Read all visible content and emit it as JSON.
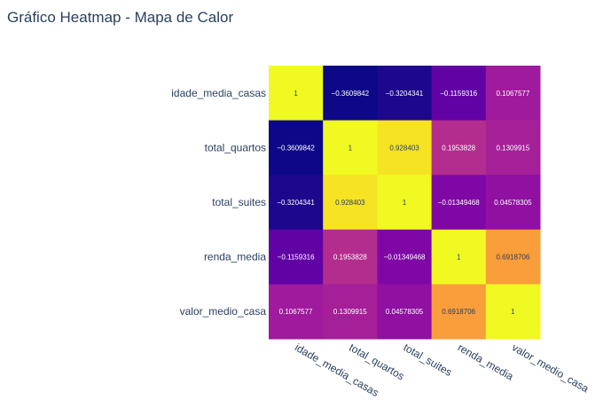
{
  "chart_data": {
    "type": "heatmap",
    "title": "Gráfico Heatmap - Mapa de Calor",
    "xlabel": "",
    "ylabel": "",
    "x_categories": [
      "idade_media_casas",
      "total_quartos",
      "total_suites",
      "renda_media",
      "valor_medio_casa"
    ],
    "y_categories": [
      "idade_media_casas",
      "total_quartos",
      "total_suites",
      "renda_media",
      "valor_medio_casa"
    ],
    "values": [
      [
        1,
        -0.3609842,
        -0.3204341,
        -0.1159316,
        0.1067577
      ],
      [
        -0.3609842,
        1,
        0.928403,
        0.1953828,
        0.1309915
      ],
      [
        -0.3204341,
        0.928403,
        1,
        -0.01349468,
        0.04578305
      ],
      [
        -0.1159316,
        0.1953828,
        -0.01349468,
        1,
        0.6918706
      ],
      [
        0.1067577,
        0.1309915,
        0.04578305,
        0.6918706,
        1
      ]
    ],
    "value_labels": [
      [
        "1",
        "−0.3609842",
        "−0.3204341",
        "−0.1159316",
        "0.1067577"
      ],
      [
        "−0.3609842",
        "1",
        "0.928403",
        "0.1953828",
        "0.1309915"
      ],
      [
        "−0.3204341",
        "0.928403",
        "1",
        "−0.01349468",
        "0.04578305"
      ],
      [
        "−0.1159316",
        "0.1953828",
        "−0.01349468",
        "1",
        "0.6918706"
      ],
      [
        "0.1067577",
        "0.1309915",
        "0.04578305",
        "0.6918706",
        "1"
      ]
    ],
    "colorscale": "plasma",
    "zmin": -0.3609842,
    "zmax": 1,
    "colorbar": false
  }
}
